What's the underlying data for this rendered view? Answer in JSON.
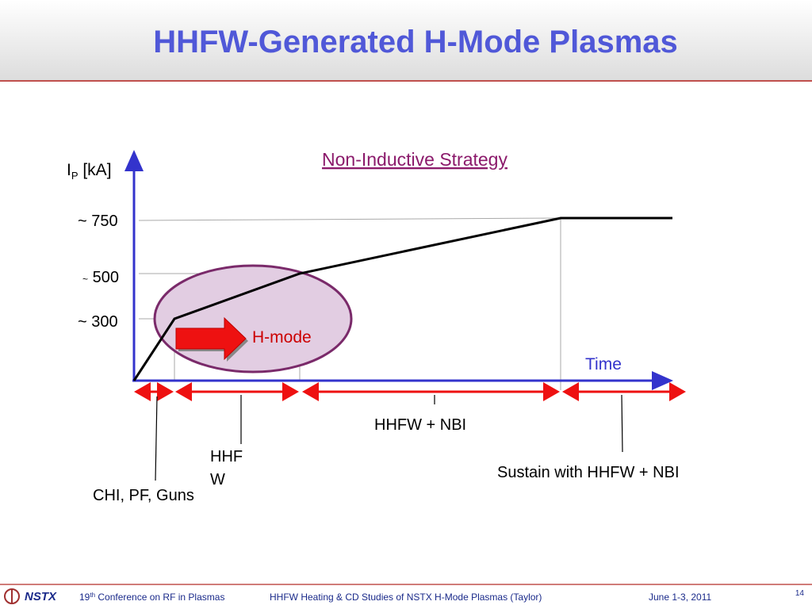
{
  "header": {
    "title": "HHFW-Generated H-Mode Plasmas"
  },
  "diagram": {
    "title": "Non-Inductive Strategy",
    "y_label": {
      "symbol": "I",
      "subscript": "P",
      "unit": " [kA]"
    },
    "y_levels": [
      {
        "tilde": "~",
        "label": "750"
      },
      {
        "tilde": "~",
        "label": "500"
      },
      {
        "tilde": "~",
        "label": "300"
      }
    ],
    "x_label": "Time",
    "highlight": "H-mode",
    "phases": [
      {
        "lines": [
          "CHI, PF, Guns"
        ]
      },
      {
        "lines": [
          "HHF",
          "W"
        ]
      },
      {
        "lines": [
          "HHFW + NBI"
        ]
      },
      {
        "lines": [
          "Sustain with HHFW + NBI"
        ]
      }
    ]
  },
  "footer": {
    "logo": "NSTX",
    "conference": {
      "number": "19",
      "suffix": "th",
      "rest": " Conference on RF in Plasmas"
    },
    "talk": "HHFW Heating & CD Studies of NSTX H-Mode Plasmas (Taylor)",
    "date": "June 1-3, 2011",
    "page": "14"
  }
}
